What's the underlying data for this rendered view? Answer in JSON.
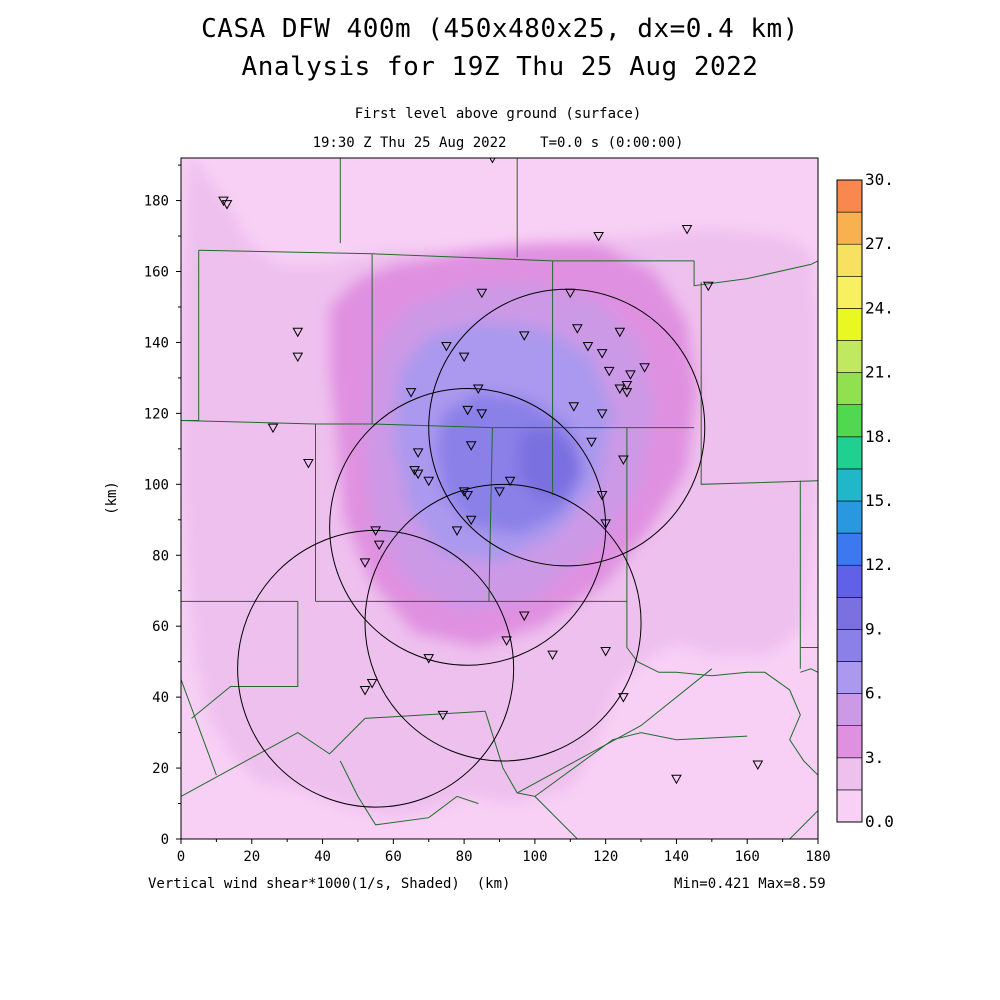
{
  "title_line1": "CASA DFW 400m (450x480x25, dx=0.4 km)",
  "title_line2": "Analysis for 19Z Thu 25 Aug 2022",
  "subtitle_line1": "First level above ground (surface)",
  "subtitle_line2": "19:30 Z Thu 25 Aug 2022    T=0.0 s (0:00:00)",
  "x_caption": "Vertical wind shear*1000(1/s, Shaded)  (km)",
  "min_max": "Min=0.421 Max=8.59",
  "chart_data": {
    "type": "heatmap",
    "field": "Vertical wind shear*1000(1/s, Shaded)",
    "xlabel": "(km)",
    "ylabel": "(km)",
    "xlim": [
      0,
      180
    ],
    "ylim": [
      0,
      192
    ],
    "x_ticks": [
      0,
      20,
      40,
      60,
      80,
      100,
      120,
      140,
      160,
      180
    ],
    "y_ticks": [
      0,
      20,
      40,
      60,
      80,
      100,
      120,
      140,
      160,
      180
    ],
    "min": 0.421,
    "max": 8.59,
    "colorbar": {
      "levels": [
        0,
        1.5,
        3,
        4.5,
        6,
        7.5,
        9,
        10.5,
        12,
        13.5,
        15,
        16.5,
        18,
        19.5,
        21,
        22.5,
        24,
        25.5,
        27,
        28.5,
        30
      ],
      "labels": [
        "0.0",
        "3.",
        "6.",
        "9.",
        "12.",
        "15.",
        "18.",
        "21.",
        "24.",
        "27.",
        "30."
      ],
      "colors": [
        "#f8d0f5",
        "#eec0ee",
        "#e090e0",
        "#cc99e6",
        "#aa99ee",
        "#8b80e8",
        "#7a70e0",
        "#6060e8",
        "#3c78f0",
        "#2a98e0",
        "#20b8c8",
        "#20d090",
        "#50d850",
        "#90e050",
        "#c0e860",
        "#e8f820",
        "#f8f060",
        "#f8e060",
        "#f8b050",
        "#f88850",
        "#f87040",
        "#f84040",
        "#f84878",
        "#f868a0",
        "#f890d0"
      ]
    },
    "shading_regions": [
      {
        "name": "outer",
        "level": 1.5,
        "points": [
          [
            2,
            193
          ],
          [
            8,
            186
          ],
          [
            14,
            178
          ],
          [
            20,
            167
          ],
          [
            28,
            162
          ],
          [
            42,
            162
          ],
          [
            58,
            166
          ],
          [
            80,
            166
          ],
          [
            100,
            168
          ],
          [
            128,
            170
          ],
          [
            150,
            172
          ],
          [
            170,
            170
          ],
          [
            178,
            166
          ],
          [
            180,
            150
          ],
          [
            180,
            100
          ],
          [
            178,
            80
          ],
          [
            176,
            60
          ],
          [
            166,
            52
          ],
          [
            150,
            52
          ],
          [
            140,
            55
          ],
          [
            134,
            52
          ],
          [
            124,
            44
          ],
          [
            120,
            34
          ],
          [
            116,
            24
          ],
          [
            110,
            14
          ],
          [
            94,
            10
          ],
          [
            80,
            12
          ],
          [
            72,
            8
          ],
          [
            60,
            6
          ],
          [
            50,
            8
          ],
          [
            44,
            10
          ],
          [
            34,
            14
          ],
          [
            22,
            16
          ],
          [
            14,
            24
          ],
          [
            8,
            34
          ],
          [
            4,
            50
          ],
          [
            2,
            72
          ],
          [
            0,
            100
          ],
          [
            0,
            150
          ]
        ]
      },
      {
        "name": "middle",
        "level": 3,
        "points": [
          [
            42,
            150
          ],
          [
            50,
            158
          ],
          [
            60,
            162
          ],
          [
            82,
            166
          ],
          [
            100,
            168
          ],
          [
            118,
            168
          ],
          [
            134,
            160
          ],
          [
            143,
            146
          ],
          [
            146,
            126
          ],
          [
            143,
            104
          ],
          [
            133,
            88
          ],
          [
            120,
            72
          ],
          [
            102,
            60
          ],
          [
            84,
            54
          ],
          [
            66,
            58
          ],
          [
            54,
            72
          ],
          [
            46,
            90
          ],
          [
            44,
            112
          ],
          [
            42,
            132
          ]
        ]
      },
      {
        "name": "inner",
        "level": 4.5,
        "points": [
          [
            56,
            140
          ],
          [
            64,
            150
          ],
          [
            80,
            156
          ],
          [
            100,
            157
          ],
          [
            118,
            152
          ],
          [
            130,
            140
          ],
          [
            134,
            122
          ],
          [
            130,
            100
          ],
          [
            118,
            82
          ],
          [
            100,
            68
          ],
          [
            80,
            64
          ],
          [
            64,
            72
          ],
          [
            54,
            90
          ],
          [
            52,
            112
          ],
          [
            54,
            130
          ]
        ]
      },
      {
        "name": "core",
        "level": 6,
        "points": [
          [
            62,
            132
          ],
          [
            70,
            142
          ],
          [
            86,
            146
          ],
          [
            102,
            144
          ],
          [
            116,
            136
          ],
          [
            122,
            120
          ],
          [
            118,
            100
          ],
          [
            106,
            86
          ],
          [
            90,
            78
          ],
          [
            74,
            80
          ],
          [
            64,
            94
          ],
          [
            60,
            114
          ]
        ]
      },
      {
        "name": "peak",
        "level": 7.5,
        "points": [
          [
            74,
            120
          ],
          [
            84,
            126
          ],
          [
            98,
            124
          ],
          [
            110,
            116
          ],
          [
            114,
            104
          ],
          [
            108,
            92
          ],
          [
            96,
            86
          ],
          [
            82,
            88
          ],
          [
            74,
            98
          ],
          [
            72,
            110
          ]
        ]
      },
      {
        "name": "max",
        "level": 9,
        "points": [
          [
            96,
            115
          ],
          [
            104,
            116
          ],
          [
            112,
            110
          ],
          [
            113,
            102
          ],
          [
            108,
            96
          ],
          [
            100,
            96
          ],
          [
            95,
            103
          ]
        ]
      }
    ],
    "range_rings": [
      {
        "center_x": 109,
        "center_y": 116,
        "radius": 39
      },
      {
        "center_x": 81,
        "center_y": 88,
        "radius": 39
      },
      {
        "center_x": 91,
        "center_y": 61,
        "radius": 39
      },
      {
        "center_x": 55,
        "center_y": 48,
        "radius": 39
      }
    ],
    "stations": [
      [
        12,
        180
      ],
      [
        13,
        179
      ],
      [
        88,
        192
      ],
      [
        118,
        170
      ],
      [
        143,
        172
      ],
      [
        149,
        156
      ],
      [
        33,
        143
      ],
      [
        33,
        136
      ],
      [
        75,
        139
      ],
      [
        85,
        154
      ],
      [
        97,
        142
      ],
      [
        110,
        154
      ],
      [
        80,
        136
      ],
      [
        112,
        144
      ],
      [
        115,
        139
      ],
      [
        119,
        137
      ],
      [
        124,
        143
      ],
      [
        131,
        133
      ],
      [
        127,
        131
      ],
      [
        126,
        128
      ],
      [
        124,
        127
      ],
      [
        126,
        126
      ],
      [
        121,
        132
      ],
      [
        111,
        122
      ],
      [
        119,
        120
      ],
      [
        65,
        126
      ],
      [
        84,
        127
      ],
      [
        81,
        121
      ],
      [
        85,
        120
      ],
      [
        26,
        116
      ],
      [
        36,
        106
      ],
      [
        67,
        109
      ],
      [
        82,
        111
      ],
      [
        116,
        112
      ],
      [
        125,
        107
      ],
      [
        66,
        104
      ],
      [
        67,
        103
      ],
      [
        70,
        101
      ],
      [
        80,
        98
      ],
      [
        81,
        97
      ],
      [
        90,
        98
      ],
      [
        93,
        101
      ],
      [
        119,
        97
      ],
      [
        120,
        89
      ],
      [
        82,
        90
      ],
      [
        78,
        87
      ],
      [
        55,
        87
      ],
      [
        56,
        83
      ],
      [
        52,
        78
      ],
      [
        97,
        63
      ],
      [
        92,
        56
      ],
      [
        120,
        53
      ],
      [
        105,
        52
      ],
      [
        70,
        51
      ],
      [
        54,
        44
      ],
      [
        52,
        42
      ],
      [
        74,
        35
      ],
      [
        125,
        40
      ],
      [
        140,
        17
      ],
      [
        163,
        21
      ]
    ],
    "boundaries": [
      [
        [
          45,
          192
        ],
        [
          45,
          168
        ]
      ],
      [
        [
          95,
          192
        ],
        [
          95,
          164
        ]
      ],
      [
        [
          5,
          166
        ],
        [
          5,
          118
        ],
        [
          0,
          118
        ]
      ],
      [
        [
          5,
          166
        ],
        [
          54,
          165
        ]
      ],
      [
        [
          54,
          165
        ],
        [
          54,
          117
        ]
      ],
      [
        [
          54,
          165
        ],
        [
          105,
          163
        ],
        [
          145,
          163
        ]
      ],
      [
        [
          105,
          163
        ],
        [
          105,
          116
        ]
      ],
      [
        [
          145,
          163
        ],
        [
          145,
          156
        ],
        [
          160,
          158
        ],
        [
          178,
          162
        ],
        [
          180,
          163
        ]
      ],
      [
        [
          147,
          157
        ],
        [
          147,
          100
        ],
        [
          180,
          101
        ]
      ],
      [
        [
          0,
          118
        ],
        [
          38,
          117
        ],
        [
          54,
          117
        ]
      ],
      [
        [
          38,
          117
        ],
        [
          38,
          67
        ]
      ],
      [
        [
          54,
          117
        ],
        [
          88,
          116
        ],
        [
          105,
          116
        ],
        [
          145,
          116
        ]
      ],
      [
        [
          88,
          116
        ],
        [
          87,
          67
        ]
      ],
      [
        [
          105,
          116
        ],
        [
          105,
          97
        ]
      ],
      [
        [
          0,
          67
        ],
        [
          33,
          67
        ]
      ],
      [
        [
          33,
          67
        ],
        [
          33,
          43
        ],
        [
          14,
          43
        ],
        [
          3,
          34
        ]
      ],
      [
        [
          38,
          67
        ],
        [
          87,
          67
        ],
        [
          126,
          67
        ],
        [
          126,
          54
        ]
      ],
      [
        [
          126,
          67
        ],
        [
          126,
          116
        ]
      ],
      [
        [
          126,
          54
        ],
        [
          129,
          50
        ],
        [
          135,
          47
        ],
        [
          140,
          47
        ],
        [
          150,
          46
        ],
        [
          160,
          47
        ],
        [
          165,
          47
        ],
        [
          172,
          42
        ],
        [
          175,
          35
        ],
        [
          172,
          28
        ],
        [
          176,
          22
        ],
        [
          180,
          18
        ]
      ],
      [
        [
          175,
          47
        ],
        [
          178,
          48
        ],
        [
          180,
          47
        ]
      ],
      [
        [
          175,
          48
        ],
        [
          175,
          101
        ]
      ],
      [
        [
          175,
          54
        ],
        [
          180,
          54
        ]
      ],
      [
        [
          0,
          45
        ],
        [
          10,
          18
        ]
      ],
      [
        [
          0,
          12
        ],
        [
          33,
          30
        ],
        [
          42,
          24
        ],
        [
          52,
          34
        ],
        [
          86,
          36
        ]
      ],
      [
        [
          45,
          22
        ],
        [
          50,
          12
        ],
        [
          55,
          4
        ],
        [
          70,
          6
        ],
        [
          78,
          12
        ],
        [
          84,
          10
        ]
      ],
      [
        [
          86,
          36
        ],
        [
          91,
          20
        ],
        [
          95,
          13
        ],
        [
          130,
          32
        ],
        [
          150,
          48
        ]
      ],
      [
        [
          95,
          13
        ],
        [
          100,
          12
        ],
        [
          122,
          28
        ],
        [
          130,
          30
        ],
        [
          140,
          28
        ],
        [
          160,
          29
        ]
      ],
      [
        [
          100,
          12
        ],
        [
          112,
          0
        ]
      ],
      [
        [
          172,
          0
        ],
        [
          180,
          8
        ]
      ]
    ]
  }
}
